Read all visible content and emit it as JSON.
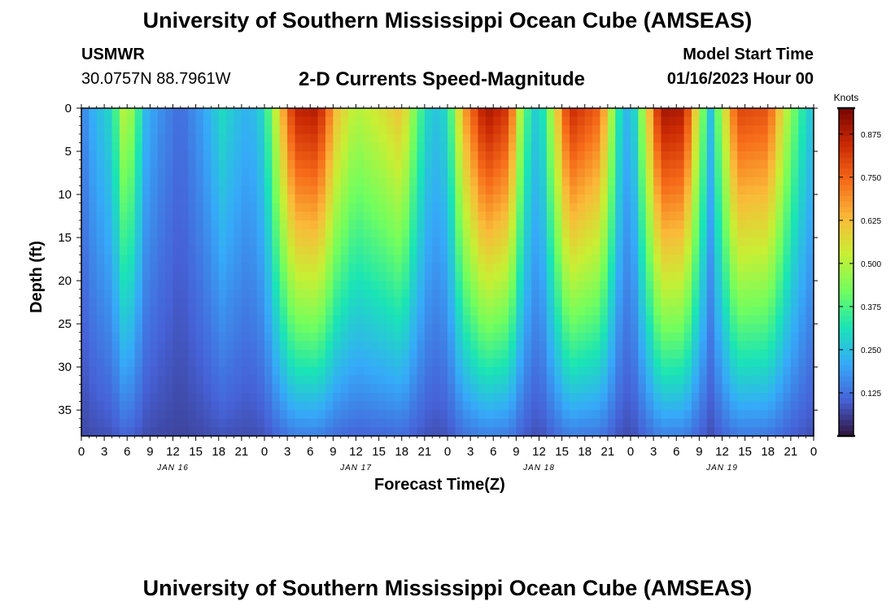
{
  "page": {
    "title_top": "University of Southern Mississippi Ocean Cube (AMSEAS)",
    "title_bottom": "University of Southern Mississippi Ocean Cube (AMSEAS)",
    "station": "USMWR",
    "location": "30.0757N  88.7961W",
    "subtitle": "2-D Currents Speed-Magnitude",
    "model_label": "Model Start Time",
    "model_time": "01/16/2023 Hour 00"
  },
  "chart_data": {
    "type": "heatmap",
    "title": "2-D Currents Speed-Magnitude",
    "xlabel": "Forecast Time(Z)",
    "ylabel": "Depth (ft)",
    "units": "Knots",
    "x_tick_labels": [
      "0",
      "3",
      "6",
      "9",
      "12",
      "15",
      "18",
      "21",
      "0",
      "3",
      "6",
      "9",
      "12",
      "15",
      "18",
      "21",
      "0",
      "3",
      "6",
      "9",
      "12",
      "15",
      "18",
      "21",
      "0",
      "3",
      "6",
      "9",
      "12",
      "15",
      "18",
      "21",
      "0"
    ],
    "day_labels": [
      {
        "label": "JAN 16",
        "hour": 12
      },
      {
        "label": "JAN 17",
        "hour": 36
      },
      {
        "label": "JAN 18",
        "hour": 60
      },
      {
        "label": "JAN 19",
        "hour": 84
      }
    ],
    "xlim": [
      0,
      96
    ],
    "ylim": [
      0,
      38
    ],
    "y_ticks": [
      0,
      5,
      10,
      15,
      20,
      25,
      30,
      35
    ],
    "colorbar": {
      "range": [
        0,
        0.95
      ],
      "ticks": [
        0.125,
        0.25,
        0.375,
        0.5,
        0.625,
        0.75,
        0.875
      ],
      "tick_labels": [
        "0.125",
        "0.250",
        "0.375",
        "0.500",
        "0.625",
        "0.750",
        "0.875"
      ],
      "colormap": [
        "#30123b",
        "#4662d7",
        "#36aaf9",
        "#1ae4b6",
        "#72fe5e",
        "#c8ef34",
        "#faba39",
        "#f66b19",
        "#cb2a04",
        "#7a0403"
      ]
    },
    "surface_speed_profile": [
      {
        "hour": 0,
        "speed": 0.15
      },
      {
        "hour": 1.5,
        "speed": 0.22
      },
      {
        "hour": 4,
        "speed": 0.3
      },
      {
        "hour": 5.5,
        "speed": 0.5
      },
      {
        "hour": 7,
        "speed": 0.45
      },
      {
        "hour": 8,
        "speed": 0.25
      },
      {
        "hour": 10,
        "speed": 0.18
      },
      {
        "hour": 13,
        "speed": 0.12
      },
      {
        "hour": 16,
        "speed": 0.2
      },
      {
        "hour": 18.5,
        "speed": 0.3
      },
      {
        "hour": 20,
        "speed": 0.26
      },
      {
        "hour": 22,
        "speed": 0.22
      },
      {
        "hour": 24,
        "speed": 0.3
      },
      {
        "hour": 26,
        "speed": 0.6
      },
      {
        "hour": 28,
        "speed": 0.86
      },
      {
        "hour": 31,
        "speed": 0.88
      },
      {
        "hour": 33.5,
        "speed": 0.62
      },
      {
        "hour": 36,
        "speed": 0.5
      },
      {
        "hour": 39.5,
        "speed": 0.56
      },
      {
        "hour": 42,
        "speed": 0.62
      },
      {
        "hour": 44,
        "speed": 0.4
      },
      {
        "hour": 46,
        "speed": 0.25
      },
      {
        "hour": 48,
        "speed": 0.3
      },
      {
        "hour": 50,
        "speed": 0.65
      },
      {
        "hour": 53,
        "speed": 0.9
      },
      {
        "hour": 56,
        "speed": 0.82
      },
      {
        "hour": 58,
        "speed": 0.4
      },
      {
        "hour": 60,
        "speed": 0.24
      },
      {
        "hour": 62,
        "speed": 0.55
      },
      {
        "hour": 64,
        "speed": 0.85
      },
      {
        "hour": 68,
        "speed": 0.75
      },
      {
        "hour": 70.5,
        "speed": 0.32
      },
      {
        "hour": 72,
        "speed": 0.2
      },
      {
        "hour": 74,
        "speed": 0.55
      },
      {
        "hour": 76,
        "speed": 0.9
      },
      {
        "hour": 79,
        "speed": 0.88
      },
      {
        "hour": 81,
        "speed": 0.5
      },
      {
        "hour": 82.5,
        "speed": 0.26
      },
      {
        "hour": 84,
        "speed": 0.5
      },
      {
        "hour": 86,
        "speed": 0.8
      },
      {
        "hour": 90,
        "speed": 0.78
      },
      {
        "hour": 93,
        "speed": 0.45
      },
      {
        "hour": 95,
        "speed": 0.3
      },
      {
        "hour": 96,
        "speed": 0.25
      }
    ]
  }
}
